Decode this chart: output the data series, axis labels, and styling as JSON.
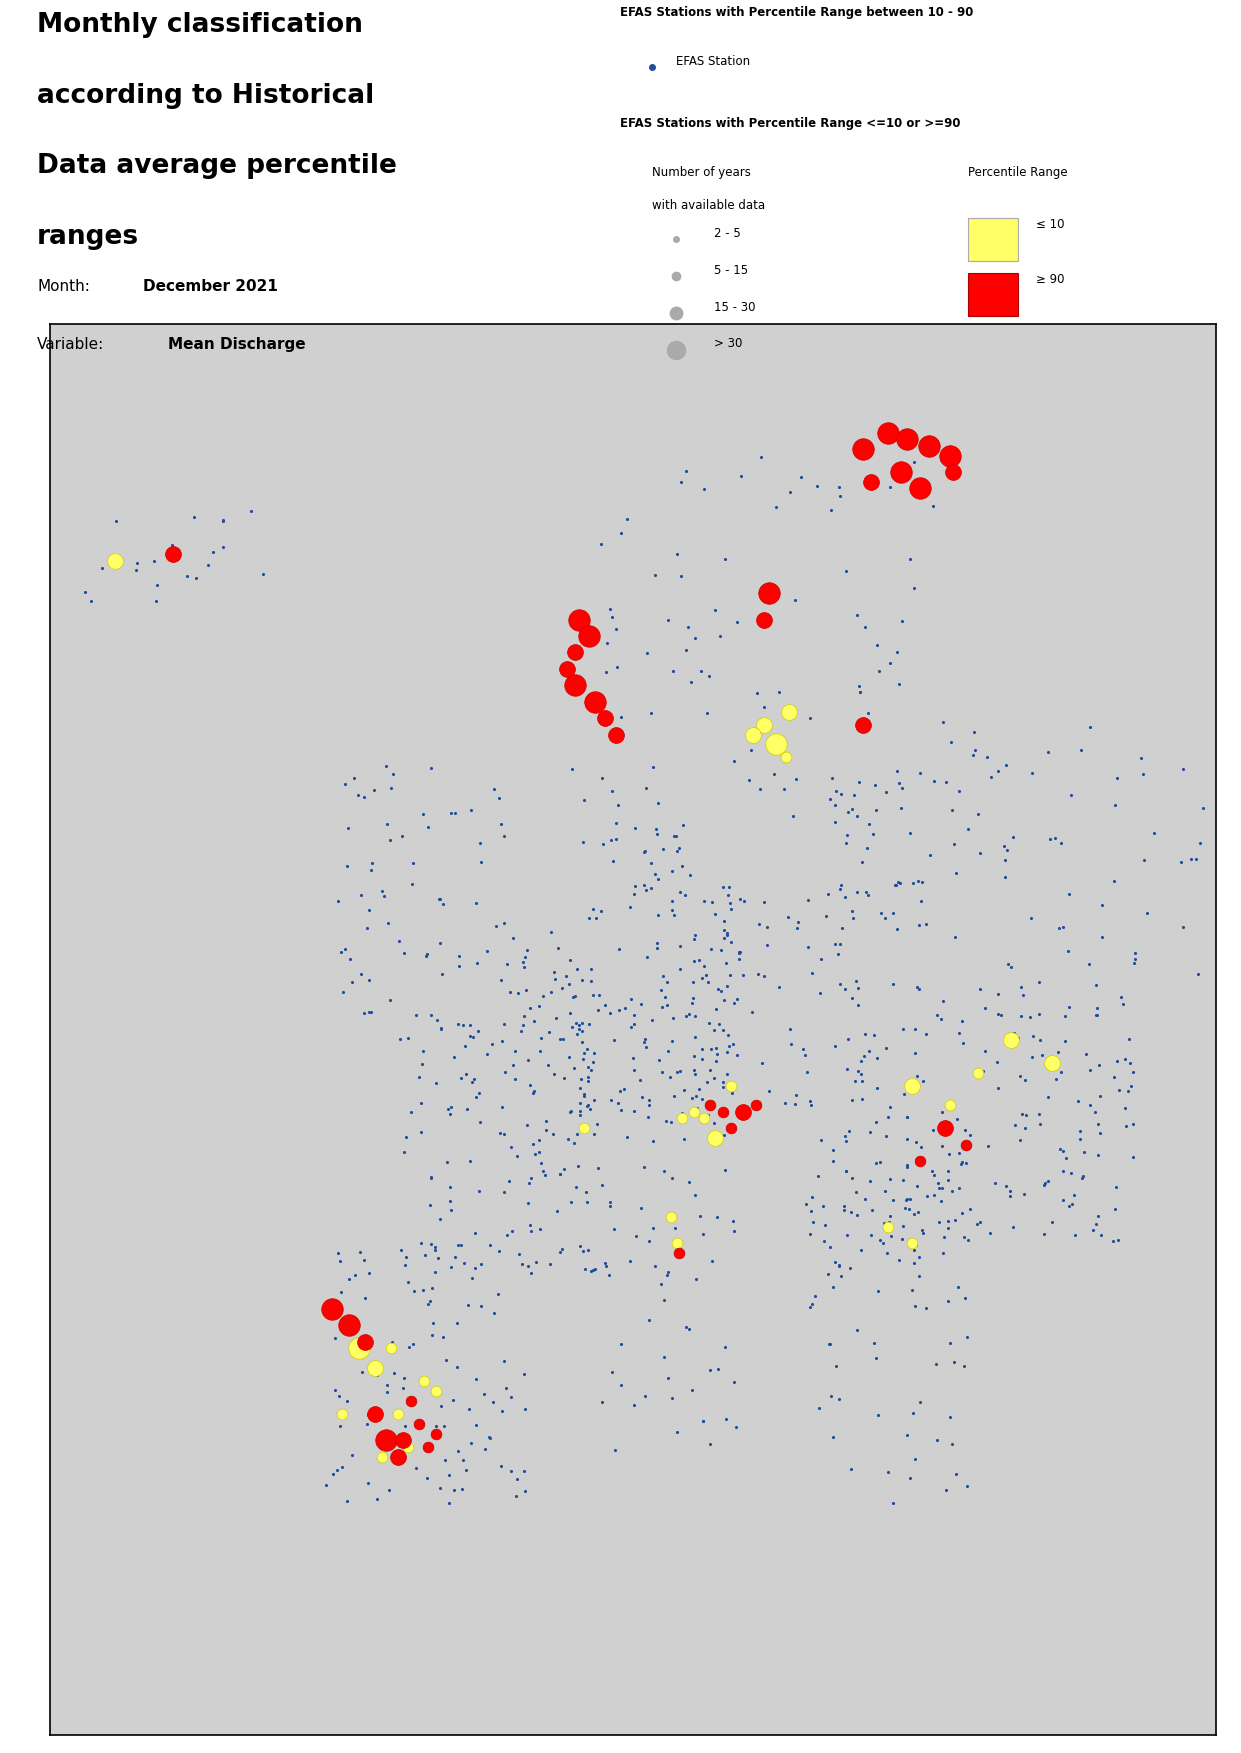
{
  "title_lines": "Monthly classification\naccording to Historical\nData average percentile\nranges",
  "month_label": "Month:",
  "month_value": "December 2021",
  "variable_label": "Variable:",
  "variable_value": "Mean Discharge",
  "legend_title_1": "EFAS Stations with Percentile Range between 10 - 90",
  "legend_item_1": "EFAS Station",
  "legend_title_2": "EFAS Stations with Percentile Range <=10 or >=90",
  "legend_size_title_line1": "Number of years",
  "legend_size_title_line2": "with available data",
  "legend_size_labels": [
    "2 - 5",
    "5 - 15",
    "15 - 30",
    "> 30"
  ],
  "legend_percentile_title": "Percentile Range",
  "legend_percentile_labels": [
    "≤ 10",
    "≥ 90"
  ],
  "legend_percentile_colors": [
    "#FFFF66",
    "#FF0000"
  ],
  "blue_dot_color": "#1F4E9C",
  "blue_dot_size": 5,
  "red_dot_color": "#FF0000",
  "yellow_dot_color": "#FFFF66",
  "background_color": "#FFFFFF",
  "map_border_color": "#000000",
  "figure_width": 12.41,
  "figure_height": 17.53,
  "title_fontsize": 19,
  "body_fontsize": 11,
  "legend_title_fontsize": 8.5,
  "legend_item_fontsize": 8.5,
  "map_extent": [
    -26,
    45,
    29,
    72
  ]
}
